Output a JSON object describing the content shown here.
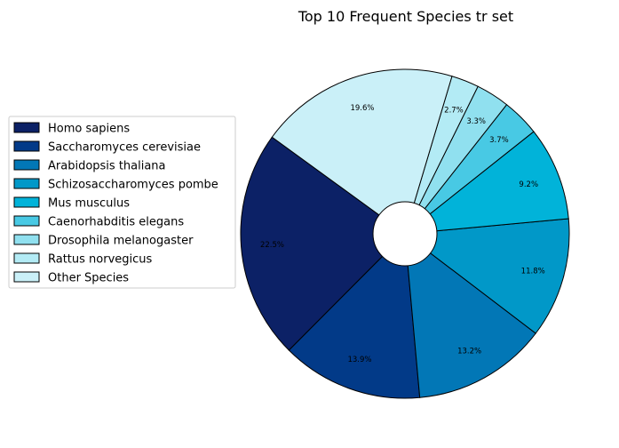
{
  "chart_data": {
    "type": "pie",
    "title": "Top 10 Frequent Species tr set",
    "donut": true,
    "edge_color": "#000000",
    "legend_placement": "left",
    "slices": [
      {
        "label": "Homo sapiens",
        "value": 22.5,
        "pct_label": "22.5%",
        "color": "#0c2166"
      },
      {
        "label": "Saccharomyces cerevisiae",
        "value": 13.9,
        "pct_label": "13.9%",
        "color": "#023a88"
      },
      {
        "label": "Arabidopsis thaliana",
        "value": 13.2,
        "pct_label": "13.2%",
        "color": "#0277b6"
      },
      {
        "label": "Schizosaccharomyces pombe",
        "value": 11.8,
        "pct_label": "11.8%",
        "color": "#0198c8"
      },
      {
        "label": "Mus musculus",
        "value": 9.2,
        "pct_label": "9.2%",
        "color": "#01b3d9"
      },
      {
        "label": "Caenorhabditis elegans",
        "value": 3.7,
        "pct_label": "3.7%",
        "color": "#48c9e4"
      },
      {
        "label": "Drosophila melanogaster",
        "value": 3.3,
        "pct_label": "3.3%",
        "color": "#90e0ef"
      },
      {
        "label": "Rattus norvegicus",
        "value": 2.7,
        "pct_label": "2.7%",
        "color": "#b3ebf5"
      },
      {
        "label": "Other Species",
        "value": 19.6,
        "pct_label": "19.6%",
        "color": "#caf0f8"
      }
    ]
  }
}
